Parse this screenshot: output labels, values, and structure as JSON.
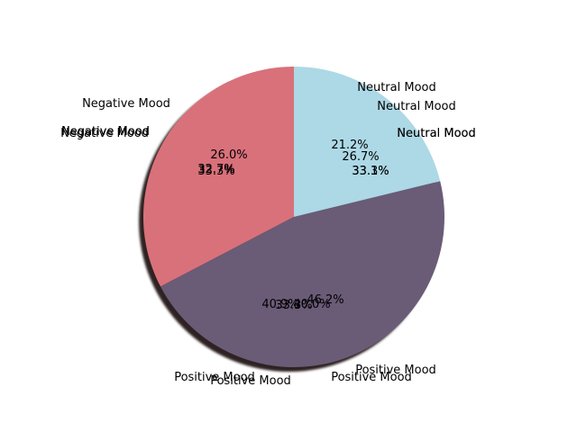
{
  "chart_data": {
    "type": "pie",
    "title": "",
    "shadow": true,
    "start_angle_deg": 90,
    "direction": "counterclockwise",
    "categories": [
      "Negative Mood",
      "Positive Mood",
      "Neutral Mood"
    ],
    "colors": [
      "#d9717a",
      "#6a5b77",
      "#add8e6"
    ],
    "displayed_values": [
      32.7,
      46.2,
      21.2
    ],
    "overplotted_labels": [
      {
        "name": "Neutral Mood",
        "label_layers": [
          {
            "category_text": "Neutral Mood",
            "pct_text": "21.2%"
          },
          {
            "category_text": "Neutral Mood",
            "pct_text": "26.7%"
          },
          {
            "category_text": "Neutral Mood",
            "pct_text": "33.1%"
          },
          {
            "category_text": "Neutral Mood",
            "pct_text": "33.3%"
          }
        ]
      },
      {
        "name": "Negative Mood",
        "label_layers": [
          {
            "category_text": "Negative Mood",
            "pct_text": "26.0%"
          },
          {
            "category_text": "Negative Mood",
            "pct_text": "32.7%"
          },
          {
            "category_text": "Negative Mood",
            "pct_text": "33.3%"
          },
          {
            "category_text": "Negative Mood",
            "pct_text": "32.7%"
          }
        ]
      },
      {
        "name": "Positive Mood",
        "label_layers": [
          {
            "category_text": "Positive Mood",
            "pct_text": "40.9%"
          },
          {
            "category_text": "Positive Mood",
            "pct_text": "46.2%"
          },
          {
            "category_text": "Positive Mood",
            "pct_text": "33.3%"
          },
          {
            "category_text": "Positive Mood",
            "pct_text": "40.0%"
          }
        ]
      }
    ]
  }
}
